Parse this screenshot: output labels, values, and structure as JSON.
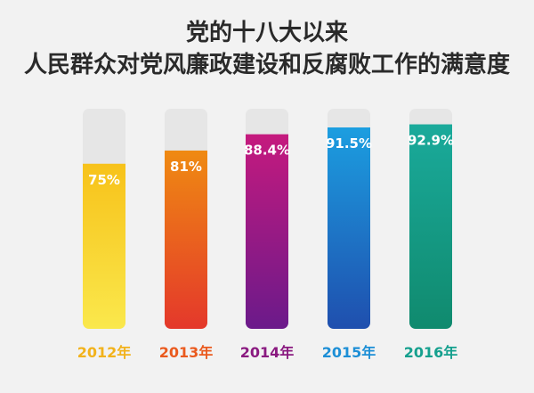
{
  "chart_data": {
    "type": "bar",
    "title": "党的十八大以来",
    "subtitle": "人民群众对党风廉政建设和反腐败工作的满意度",
    "categories": [
      "2012年",
      "2013年",
      "2014年",
      "2015年",
      "2016年"
    ],
    "values": [
      75,
      81,
      88.4,
      91.5,
      92.9
    ],
    "value_labels": [
      "75%",
      "81%",
      "88.4%",
      "91.5%",
      "92.9%"
    ],
    "ylim": [
      0,
      100
    ],
    "xlabel": "",
    "ylabel": "",
    "grid": false,
    "legend": "none",
    "colors": [
      {
        "top": "#f7c21a",
        "bottom": "#fae84c",
        "label": "#f2b21b"
      },
      {
        "top": "#ef8a12",
        "bottom": "#e4382b",
        "label": "#ea5a1e"
      },
      {
        "top": "#c51a7e",
        "bottom": "#6b1a8a",
        "label": "#8a1a80"
      },
      {
        "top": "#1c9ee0",
        "bottom": "#1f4fae",
        "label": "#1d8fd6"
      },
      {
        "top": "#1aaa9b",
        "bottom": "#108a6e",
        "label": "#15a08e"
      }
    ],
    "track_color": "#e6e6e6"
  }
}
